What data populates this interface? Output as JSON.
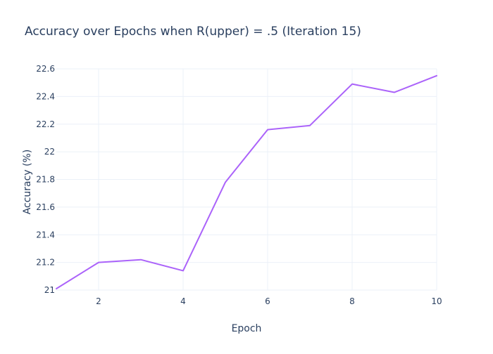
{
  "chart_data": {
    "type": "line",
    "title": "Accuracy over Epochs when R(upper) = .5 (Iteration 15)",
    "xlabel": "Epoch",
    "ylabel": "Accuracy (%)",
    "x": [
      1,
      2,
      3,
      4,
      5,
      6,
      7,
      8,
      9,
      10
    ],
    "series": [
      {
        "values": [
          21.01,
          21.2,
          21.22,
          21.14,
          21.78,
          22.16,
          22.19,
          22.49,
          22.43,
          22.55
        ],
        "color": "#ab63fa"
      }
    ],
    "xlim": [
      1,
      10
    ],
    "ylim": [
      21,
      22.6
    ],
    "x_ticks": [
      2,
      4,
      6,
      8,
      10
    ],
    "x_tick_labels": [
      "2",
      "4",
      "6",
      "8",
      "10"
    ],
    "y_ticks": [
      21,
      21.2,
      21.4,
      21.6,
      21.8,
      22,
      22.2,
      22.4,
      22.6
    ],
    "y_tick_labels": [
      "21",
      "21.2",
      "21.4",
      "21.6",
      "21.8",
      "22",
      "22.2",
      "22.4",
      "22.6"
    ],
    "grid": true,
    "legend": "none"
  }
}
